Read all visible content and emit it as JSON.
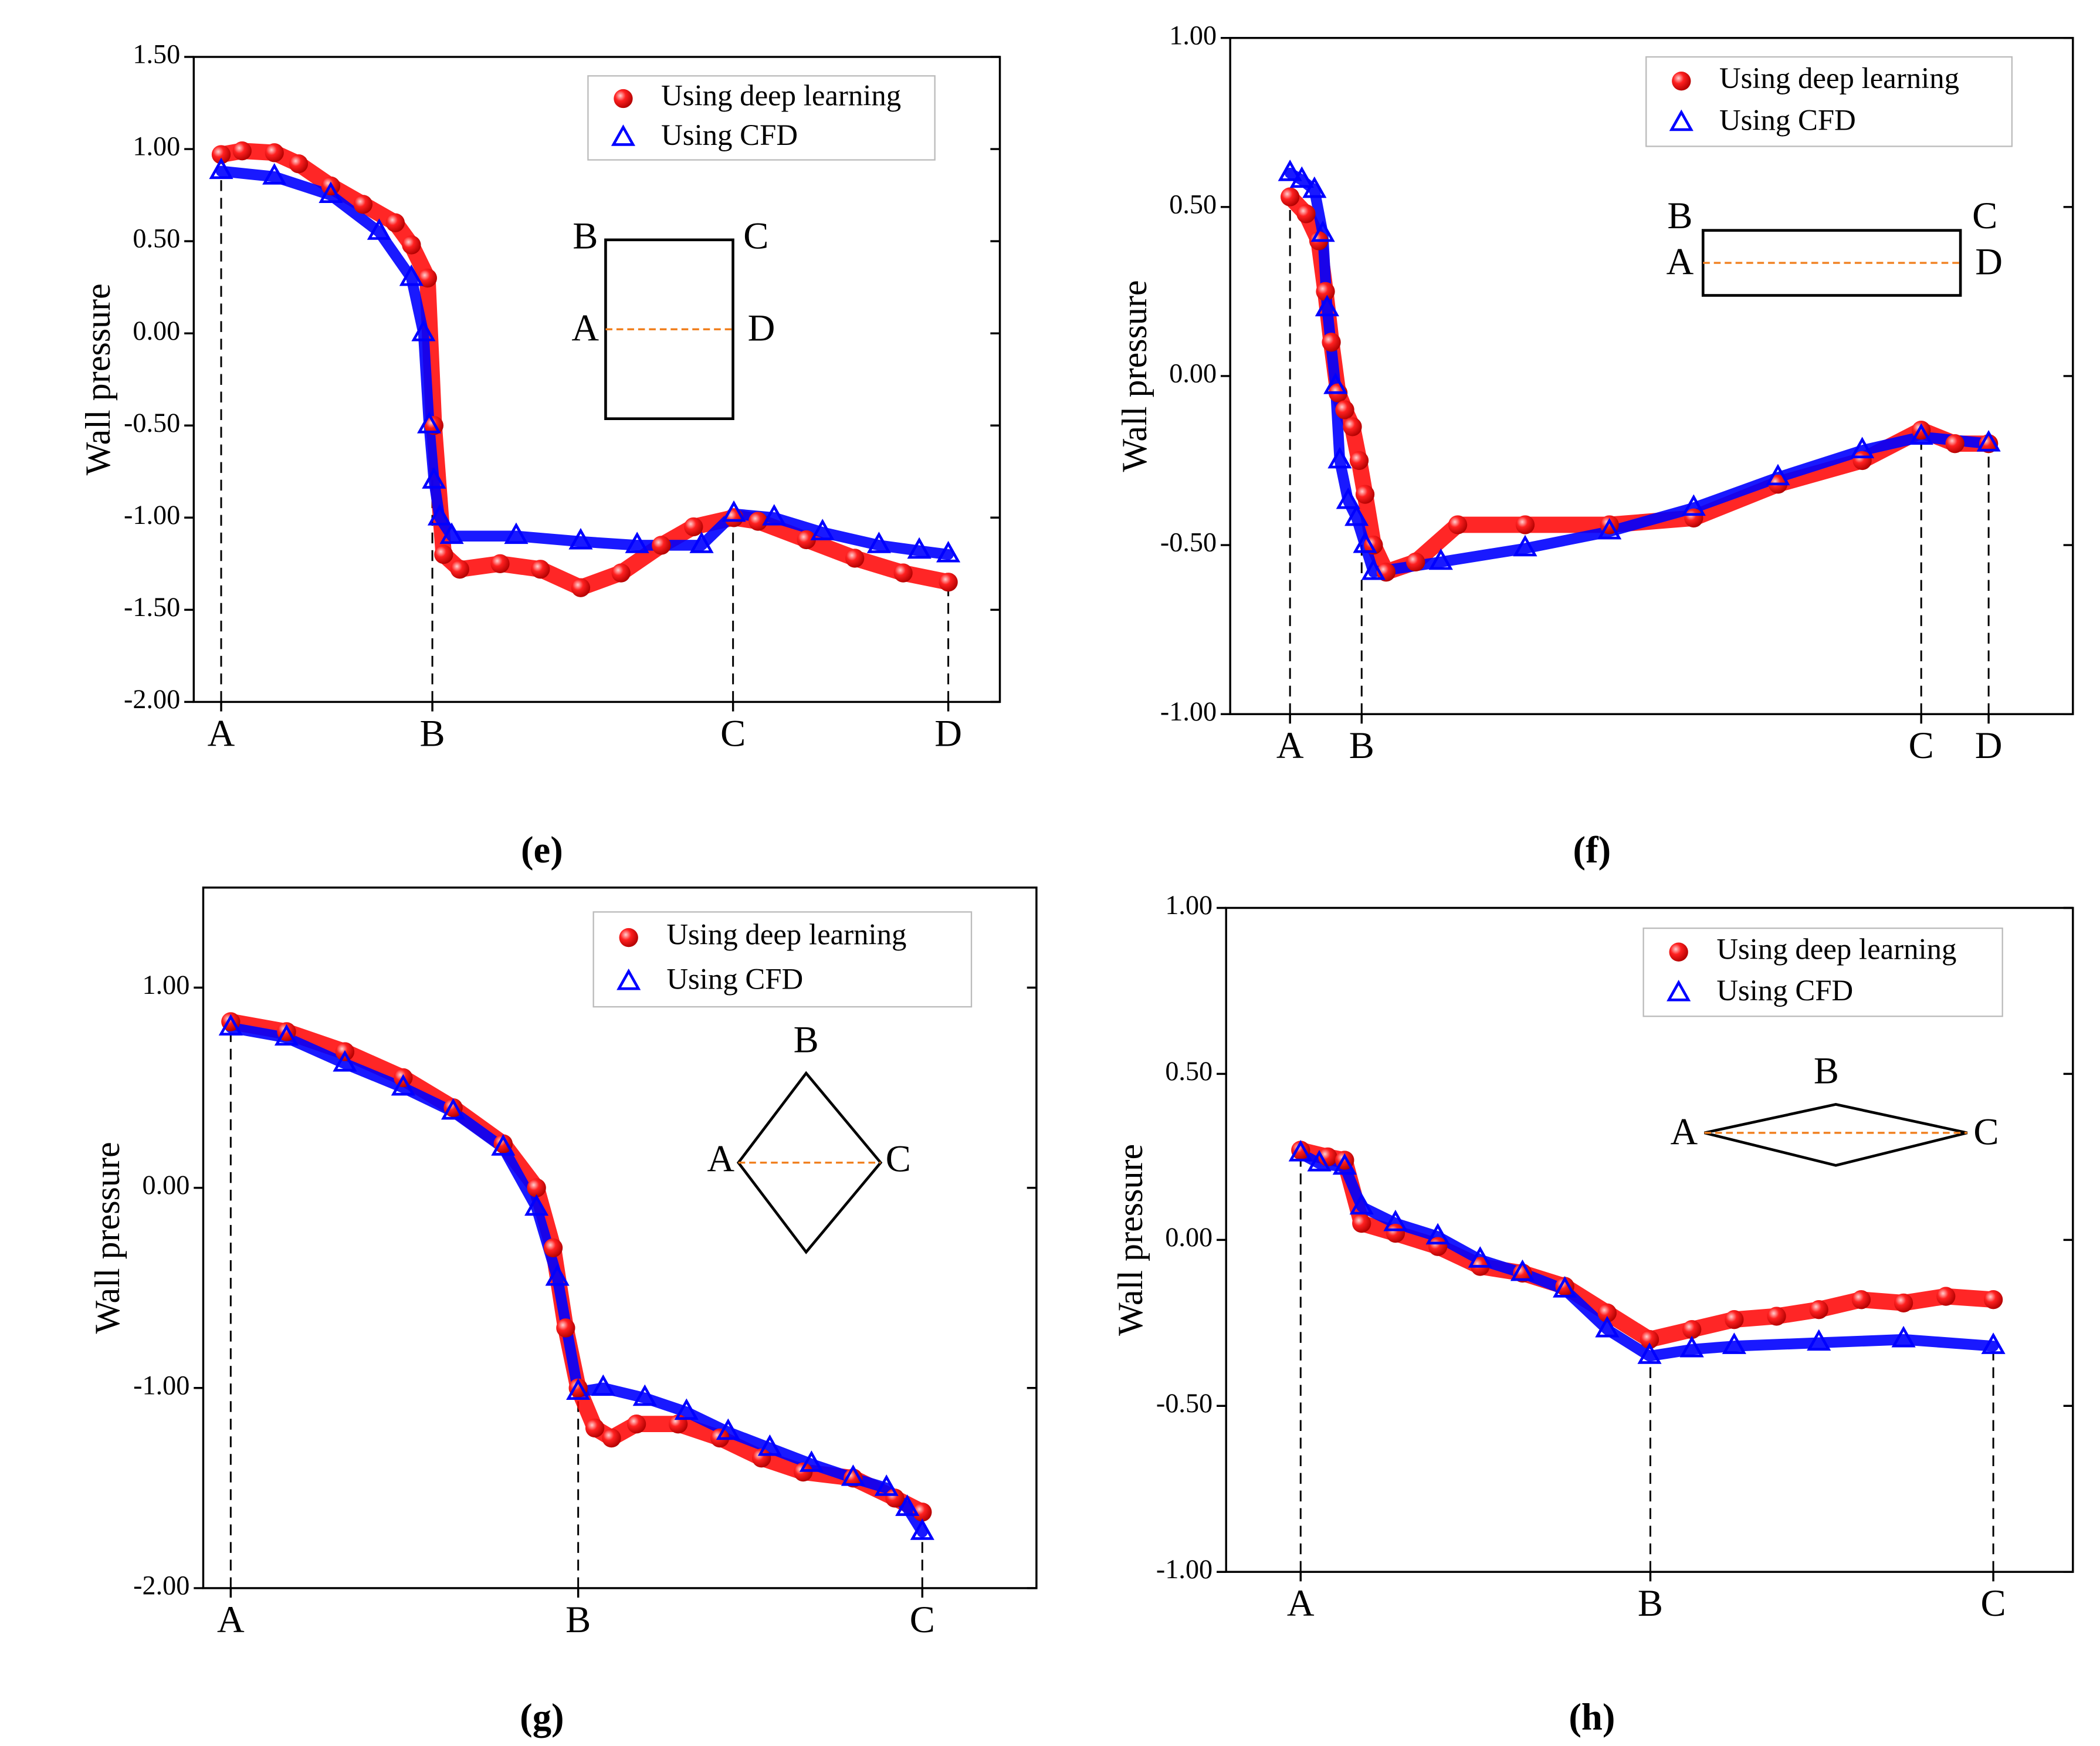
{
  "chart_data": [
    {
      "type": "scatter",
      "caption": "(e)",
      "ylabel": "Wall pressure",
      "xlim": [
        0,
        100
      ],
      "xticks": [
        {
          "value": 3.4,
          "label": "A"
        },
        {
          "value": 29.6,
          "label": "B"
        },
        {
          "value": 66.9,
          "label": "C"
        },
        {
          "value": 93.6,
          "label": "D"
        }
      ],
      "ylim": [
        -2,
        1.5
      ],
      "yticks": [
        {
          "value": -2,
          "label": "-2.00"
        },
        {
          "value": -1.5,
          "label": "-1.50"
        },
        {
          "value": -1,
          "label": "-1.00"
        },
        {
          "value": -0.5,
          "label": "-0.50"
        },
        {
          "value": 0,
          "label": "0.00"
        },
        {
          "value": 0.5,
          "label": "0.50"
        },
        {
          "value": 1,
          "label": "1.00"
        },
        {
          "value": 1.5,
          "label": "1.50"
        }
      ],
      "legend": "upper right",
      "inset_labels": [
        "B",
        "C",
        "A",
        "D"
      ],
      "series": [
        {
          "name": "Using deep learning",
          "color": "#ff0000",
          "x": [
            3.4,
            6,
            10,
            13,
            17,
            21,
            25,
            27,
            29,
            29.8,
            31,
            33,
            38,
            43,
            48,
            53,
            58,
            62,
            67,
            70,
            76,
            82,
            88,
            93.6
          ],
          "values": [
            0.97,
            0.99,
            0.98,
            0.92,
            0.8,
            0.7,
            0.6,
            0.48,
            0.3,
            -0.5,
            -1.2,
            -1.28,
            -1.25,
            -1.28,
            -1.38,
            -1.3,
            -1.15,
            -1.05,
            -1.0,
            -1.02,
            -1.12,
            -1.22,
            -1.3,
            -1.35
          ]
        },
        {
          "name": "Using CFD",
          "color": "#0000ff",
          "x": [
            3.4,
            10,
            17,
            23,
            27,
            28.5,
            29.2,
            29.8,
            30.5,
            32,
            40,
            48,
            55,
            63,
            67,
            72,
            78,
            85,
            90,
            93.6
          ],
          "values": [
            0.88,
            0.85,
            0.75,
            0.55,
            0.3,
            0.0,
            -0.5,
            -0.8,
            -1.0,
            -1.1,
            -1.1,
            -1.13,
            -1.15,
            -1.15,
            -0.98,
            -1.0,
            -1.08,
            -1.15,
            -1.18,
            -1.2
          ]
        }
      ]
    },
    {
      "type": "scatter",
      "caption": "(f)",
      "ylabel": "Wall pressure",
      "xlim": [
        0,
        100
      ],
      "xticks": [
        {
          "value": 7.1,
          "label": "A"
        },
        {
          "value": 15.6,
          "label": "B"
        },
        {
          "value": 82,
          "label": "C"
        },
        {
          "value": 90,
          "label": "D"
        }
      ],
      "ylim": [
        -1,
        1
      ],
      "yticks": [
        {
          "value": -1,
          "label": "-1.00"
        },
        {
          "value": -0.5,
          "label": "-0.50"
        },
        {
          "value": 0,
          "label": "0.00"
        },
        {
          "value": 0.5,
          "label": "0.50"
        },
        {
          "value": 1,
          "label": "1.00"
        }
      ],
      "legend": "upper right",
      "inset_labels": [
        "B",
        "C",
        "A",
        "D"
      ],
      "series": [
        {
          "name": "Using deep learning",
          "color": "#ff0000",
          "x": [
            7.1,
            9,
            10.5,
            11.3,
            12,
            12.8,
            13.6,
            14.5,
            15.3,
            16,
            17,
            18.5,
            22,
            27,
            35,
            45,
            55,
            65,
            75,
            82,
            86,
            90
          ],
          "values": [
            0.53,
            0.48,
            0.4,
            0.25,
            0.1,
            -0.05,
            -0.1,
            -0.15,
            -0.25,
            -0.35,
            -0.5,
            -0.58,
            -0.55,
            -0.44,
            -0.44,
            -0.44,
            -0.42,
            -0.32,
            -0.25,
            -0.16,
            -0.2,
            -0.2
          ]
        },
        {
          "name": "Using CFD",
          "color": "#0000ff",
          "x": [
            7.1,
            8.5,
            10,
            11,
            11.5,
            12.5,
            13,
            14,
            15,
            16,
            17,
            25,
            35,
            45,
            55,
            65,
            75,
            82,
            90
          ],
          "values": [
            0.6,
            0.58,
            0.55,
            0.42,
            0.2,
            -0.03,
            -0.25,
            -0.37,
            -0.42,
            -0.5,
            -0.58,
            -0.55,
            -0.51,
            -0.46,
            -0.39,
            -0.3,
            -0.22,
            -0.18,
            -0.2
          ]
        }
      ]
    },
    {
      "type": "scatter",
      "caption": "(g)",
      "ylabel": "Wall pressure",
      "xlim": [
        0,
        100
      ],
      "xticks": [
        {
          "value": 3.3,
          "label": "A"
        },
        {
          "value": 45,
          "label": "B"
        },
        {
          "value": 86.3,
          "label": "C"
        }
      ],
      "ylim": [
        -2,
        1.5
      ],
      "yticks": [
        {
          "value": -2,
          "label": "-2.00"
        },
        {
          "value": -1,
          "label": "-1.00"
        },
        {
          "value": 0,
          "label": "0.00"
        },
        {
          "value": 1,
          "label": "1.00"
        }
      ],
      "legend": "upper right",
      "inset_labels": [
        "B",
        "A",
        "C"
      ],
      "series": [
        {
          "name": "Using deep learning",
          "color": "#ff0000",
          "x": [
            3.3,
            10,
            17,
            24,
            30,
            36,
            40,
            42,
            43.5,
            45,
            47,
            49,
            52,
            57,
            62,
            67,
            72,
            78,
            83,
            86.3
          ],
          "values": [
            0.83,
            0.78,
            0.68,
            0.55,
            0.4,
            0.22,
            0.0,
            -0.3,
            -0.7,
            -1.0,
            -1.2,
            -1.25,
            -1.18,
            -1.18,
            -1.25,
            -1.35,
            -1.42,
            -1.45,
            -1.55,
            -1.62
          ]
        },
        {
          "name": "Using CFD",
          "color": "#0000ff",
          "x": [
            3.3,
            10,
            17,
            24,
            30,
            36,
            40,
            42.5,
            45,
            48,
            53,
            58,
            63,
            68,
            73,
            78,
            82,
            84.5,
            86.3
          ],
          "values": [
            0.8,
            0.75,
            0.62,
            0.5,
            0.38,
            0.2,
            -0.1,
            -0.45,
            -1.02,
            -1.0,
            -1.05,
            -1.12,
            -1.22,
            -1.3,
            -1.38,
            -1.45,
            -1.5,
            -1.6,
            -1.72
          ]
        }
      ]
    },
    {
      "type": "scatter",
      "caption": "(h)",
      "ylabel": "Wall pressure",
      "xlim": [
        0,
        100
      ],
      "xticks": [
        {
          "value": 8.8,
          "label": "A"
        },
        {
          "value": 50.1,
          "label": "B"
        },
        {
          "value": 90.6,
          "label": "C"
        }
      ],
      "ylim": [
        -1,
        1
      ],
      "yticks": [
        {
          "value": -1,
          "label": "-1.00"
        },
        {
          "value": -0.5,
          "label": "-0.50"
        },
        {
          "value": 0,
          "label": "0.00"
        },
        {
          "value": 0.5,
          "label": "0.50"
        },
        {
          "value": 1,
          "label": "1.00"
        }
      ],
      "legend": "upper right",
      "inset_labels": [
        "B",
        "A",
        "C"
      ],
      "series": [
        {
          "name": "Using deep learning",
          "color": "#ff0000",
          "x": [
            8.8,
            12,
            14,
            16,
            20,
            25,
            30,
            35,
            40,
            45,
            50,
            55,
            60,
            65,
            70,
            75,
            80,
            85,
            90.6
          ],
          "values": [
            0.27,
            0.25,
            0.24,
            0.05,
            0.02,
            -0.02,
            -0.08,
            -0.1,
            -0.14,
            -0.22,
            -0.3,
            -0.27,
            -0.24,
            -0.23,
            -0.21,
            -0.18,
            -0.19,
            -0.17,
            -0.18
          ]
        },
        {
          "name": "Using CFD",
          "color": "#0000ff",
          "x": [
            8.8,
            11,
            14,
            16,
            20,
            25,
            30,
            35,
            40,
            45,
            50,
            55,
            60,
            70,
            80,
            90.6
          ],
          "values": [
            0.26,
            0.23,
            0.22,
            0.1,
            0.05,
            0.01,
            -0.06,
            -0.1,
            -0.15,
            -0.27,
            -0.35,
            -0.33,
            -0.32,
            -0.31,
            -0.3,
            -0.32
          ]
        }
      ]
    }
  ]
}
